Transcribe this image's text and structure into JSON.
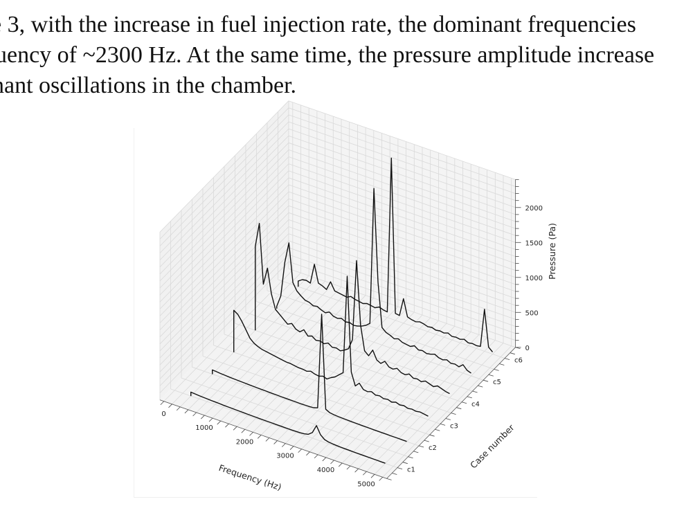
{
  "paragraph": {
    "lines": [
      "e 3, with the increase in fuel injection rate, the dominant frequencies",
      "uency of ~2300 Hz. At the same time, the pressure amplitude increase",
      "nant oscillations in the chamber."
    ]
  },
  "chart_data": {
    "type": "line",
    "subtype": "3d-waterfall",
    "title": "",
    "xlabel": "Frequency (Hz)",
    "ylabel": "Case number",
    "zlabel": "Pressure (Pa)",
    "xlim": [
      -300,
      5300
    ],
    "zlim": [
      0,
      2400
    ],
    "x_ticks": [
      0,
      1000,
      2000,
      3000,
      4000,
      5000
    ],
    "y_ticks": [
      "c1",
      "c2",
      "c3",
      "c4",
      "c5",
      "c6"
    ],
    "z_ticks": [
      0,
      500,
      1000,
      1500,
      2000
    ],
    "grid": true,
    "line_color": "#111111",
    "x": {
      "start": 200,
      "step": 100,
      "count": 49
    },
    "series": [
      {
        "name": "c1",
        "values": [
          55,
          50,
          46,
          42,
          40,
          37,
          35,
          33,
          30,
          28,
          27,
          25,
          24,
          22,
          21,
          20,
          19,
          18,
          17,
          16,
          16,
          15,
          15,
          14,
          14,
          14,
          15,
          17,
          22,
          35,
          80,
          200,
          90,
          40,
          25,
          18,
          14,
          12,
          10,
          9,
          8,
          7,
          6,
          5,
          5,
          4,
          4,
          3,
          3
        ]
      },
      {
        "name": "c2",
        "values": [
          60,
          55,
          50,
          46,
          42,
          40,
          37,
          35,
          33,
          30,
          28,
          27,
          25,
          24,
          22,
          21,
          20,
          19,
          18,
          17,
          16,
          16,
          15,
          16,
          18,
          22,
          40,
          1400,
          60,
          30,
          22,
          18,
          15,
          13,
          12,
          10,
          9,
          8,
          7,
          6,
          5,
          5,
          4,
          4,
          3,
          3,
          3,
          2,
          2
        ]
      },
      {
        "name": "c3",
        "values": [
          600,
          560,
          480,
          380,
          280,
          230,
          200,
          180,
          170,
          160,
          150,
          140,
          130,
          120,
          120,
          110,
          100,
          100,
          90,
          110,
          90,
          80,
          100,
          80,
          120,
          150,
          200,
          250,
          1650,
          300,
          120,
          180,
          110,
          100,
          120,
          90,
          100,
          80,
          90,
          70,
          90,
          70,
          80,
          60,
          70,
          60,
          70,
          60,
          50
        ]
      },
      {
        "name": "c4",
        "values": [
          1200,
          1550,
          700,
          950,
          600,
          400,
          350,
          300,
          250,
          280,
          220,
          200,
          250,
          180,
          200,
          160,
          170,
          150,
          180,
          140,
          150,
          130,
          160,
          200,
          350,
          1500,
          600,
          250,
          200,
          300,
          180,
          150,
          200,
          140,
          130,
          160,
          120,
          110,
          140,
          100,
          110,
          90,
          120,
          100,
          80,
          110,
          90,
          70,
          60
        ]
      },
      {
        "name": "c5",
        "values": [
          30,
          200,
          700,
          1000,
          450,
          350,
          300,
          260,
          250,
          220,
          230,
          200,
          180,
          210,
          170,
          160,
          180,
          150,
          160,
          140,
          150,
          170,
          200,
          250,
          2200,
          880,
          250,
          200,
          180,
          150,
          170,
          140,
          130,
          120,
          150,
          110,
          120,
          100,
          110,
          130,
          100,
          90,
          110,
          80,
          90,
          70,
          120,
          60,
          40
        ]
      },
      {
        "name": "c6",
        "values": [
          80,
          120,
          130,
          110,
          400,
          150,
          130,
          100,
          230,
          120,
          110,
          100,
          90,
          120,
          100,
          90,
          80,
          100,
          90,
          80,
          110,
          90,
          80,
          2300,
          100,
          90,
          350,
          110,
          90,
          80,
          100,
          90,
          70,
          80,
          60,
          70,
          60,
          80,
          50,
          60,
          50,
          70,
          40,
          50,
          40,
          50,
          600,
          80,
          30
        ]
      }
    ]
  }
}
